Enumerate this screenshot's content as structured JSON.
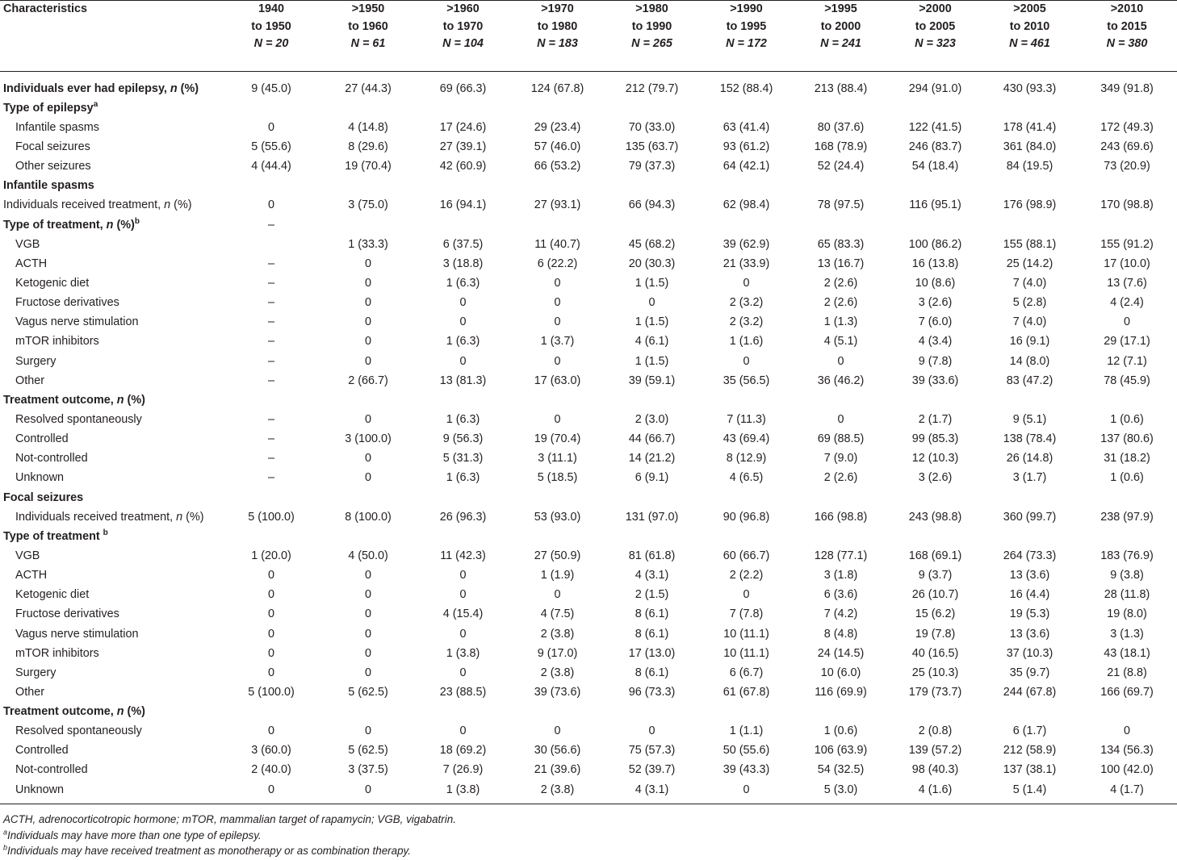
{
  "table": {
    "col0_header": "Characteristics",
    "columns": [
      {
        "range1": "1940",
        "range2": "to 1950",
        "n": "N = 20"
      },
      {
        "range1": ">1950",
        "range2": "to 1960",
        "n": "N = 61"
      },
      {
        "range1": ">1960",
        "range2": "to 1970",
        "n": "N = 104"
      },
      {
        "range1": ">1970",
        "range2": "to 1980",
        "n": "N = 183"
      },
      {
        "range1": ">1980",
        "range2": "to 1990",
        "n": "N = 265"
      },
      {
        "range1": ">1990",
        "range2": "to 1995",
        "n": "N = 172"
      },
      {
        "range1": ">1995",
        "range2": "to 2000",
        "n": "N = 241"
      },
      {
        "range1": ">2000",
        "range2": "to 2005",
        "n": "N = 323"
      },
      {
        "range1": ">2005",
        "range2": "to 2010",
        "n": "N = 461"
      },
      {
        "range1": ">2010",
        "range2": "to 2015",
        "n": "N = 380"
      }
    ],
    "rows": [
      {
        "kind": "bold",
        "label": "Individuals ever had epilepsy, n (%)",
        "values": [
          "9 (45.0)",
          "27 (44.3)",
          "69 (66.3)",
          "124 (67.8)",
          "212 (79.7)",
          "152 (88.4)",
          "213 (88.4)",
          "294 (91.0)",
          "430 (93.3)",
          "349 (91.8)"
        ]
      },
      {
        "kind": "section",
        "label": "Type of epilepsy",
        "sup": "a",
        "values": []
      },
      {
        "kind": "sub",
        "label": "Infantile spasms",
        "values": [
          "0",
          "4 (14.8)",
          "17 (24.6)",
          "29 (23.4)",
          "70 (33.0)",
          "63 (41.4)",
          "80 (37.6)",
          "122 (41.5)",
          "178 (41.4)",
          "172 (49.3)"
        ]
      },
      {
        "kind": "sub",
        "label": "Focal seizures",
        "values": [
          "5 (55.6)",
          "8 (29.6)",
          "27 (39.1)",
          "57 (46.0)",
          "135 (63.7)",
          "93 (61.2)",
          "168 (78.9)",
          "246 (83.7)",
          "361 (84.0)",
          "243 (69.6)"
        ]
      },
      {
        "kind": "sub",
        "label": "Other seizures",
        "values": [
          "4 (44.4)",
          "19 (70.4)",
          "42 (60.9)",
          "66 (53.2)",
          "79 (37.3)",
          "64 (42.1)",
          "52 (24.4)",
          "54 (18.4)",
          "84 (19.5)",
          "73 (20.9)"
        ]
      },
      {
        "kind": "section",
        "label": "Infantile spasms",
        "values": []
      },
      {
        "kind": "plain",
        "label": "Individuals received treatment, n (%)",
        "values": [
          "0",
          "3 (75.0)",
          "16 (94.1)",
          "27 (93.1)",
          "66 (94.3)",
          "62 (98.4)",
          "78 (97.5)",
          "116 (95.1)",
          "176 (98.9)",
          "170 (98.8)"
        ]
      },
      {
        "kind": "section",
        "label": "Type of treatment, n (%)",
        "sup": "b",
        "values": [
          "–"
        ]
      },
      {
        "kind": "sub",
        "label": "VGB",
        "values": [
          "",
          "1 (33.3)",
          "6 (37.5)",
          "11 (40.7)",
          "45 (68.2)",
          "39 (62.9)",
          "65 (83.3)",
          "100 (86.2)",
          "155 (88.1)",
          "155 (91.2)"
        ]
      },
      {
        "kind": "sub",
        "label": "ACTH",
        "values": [
          "–",
          "0",
          "3 (18.8)",
          "6 (22.2)",
          "20 (30.3)",
          "21 (33.9)",
          "13 (16.7)",
          "16 (13.8)",
          "25 (14.2)",
          "17 (10.0)"
        ]
      },
      {
        "kind": "sub",
        "label": "Ketogenic diet",
        "values": [
          "–",
          "0",
          "1 (6.3)",
          "0",
          "1 (1.5)",
          "0",
          "2 (2.6)",
          "10 (8.6)",
          "7 (4.0)",
          "13 (7.6)"
        ]
      },
      {
        "kind": "sub",
        "label": "Fructose derivatives",
        "values": [
          "–",
          "0",
          "0",
          "0",
          "0",
          "2 (3.2)",
          "2 (2.6)",
          "3 (2.6)",
          "5 (2.8)",
          "4 (2.4)"
        ]
      },
      {
        "kind": "sub",
        "label": "Vagus nerve stimulation",
        "values": [
          "–",
          "0",
          "0",
          "0",
          "1 (1.5)",
          "2 (3.2)",
          "1 (1.3)",
          "7 (6.0)",
          "7 (4.0)",
          "0"
        ]
      },
      {
        "kind": "sub",
        "label": "mTOR inhibitors",
        "values": [
          "–",
          "0",
          "1 (6.3)",
          "1 (3.7)",
          "4 (6.1)",
          "1 (1.6)",
          "4 (5.1)",
          "4 (3.4)",
          "16 (9.1)",
          "29 (17.1)"
        ]
      },
      {
        "kind": "sub",
        "label": "Surgery",
        "values": [
          "–",
          "0",
          "0",
          "0",
          "1 (1.5)",
          "0",
          "0",
          "9 (7.8)",
          "14 (8.0)",
          "12 (7.1)"
        ]
      },
      {
        "kind": "sub",
        "label": "Other",
        "values": [
          "–",
          "2 (66.7)",
          "13 (81.3)",
          "17 (63.0)",
          "39 (59.1)",
          "35 (56.5)",
          "36 (46.2)",
          "39 (33.6)",
          "83 (47.2)",
          "78 (45.9)"
        ]
      },
      {
        "kind": "section",
        "label": "Treatment outcome, n (%)",
        "values": []
      },
      {
        "kind": "sub",
        "label": "Resolved spontaneously",
        "values": [
          "–",
          "0",
          "1 (6.3)",
          "0",
          "2 (3.0)",
          "7 (11.3)",
          "0",
          "2 (1.7)",
          "9 (5.1)",
          "1 (0.6)"
        ]
      },
      {
        "kind": "sub",
        "label": "Controlled",
        "values": [
          "–",
          "3 (100.0)",
          "9 (56.3)",
          "19 (70.4)",
          "44 (66.7)",
          "43 (69.4)",
          "69 (88.5)",
          "99 (85.3)",
          "138 (78.4)",
          "137 (80.6)"
        ]
      },
      {
        "kind": "sub",
        "label": "Not-controlled",
        "values": [
          "–",
          "0",
          "5 (31.3)",
          "3 (11.1)",
          "14 (21.2)",
          "8 (12.9)",
          "7 (9.0)",
          "12 (10.3)",
          "26 (14.8)",
          "31 (18.2)"
        ]
      },
      {
        "kind": "sub",
        "label": "Unknown",
        "values": [
          "–",
          "0",
          "1 (6.3)",
          "5 (18.5)",
          "6 (9.1)",
          "4 (6.5)",
          "2 (2.6)",
          "3 (2.6)",
          "3 (1.7)",
          "1 (0.6)"
        ]
      },
      {
        "kind": "section",
        "label": "Focal seizures",
        "values": []
      },
      {
        "kind": "sub",
        "label": "Individuals received treatment, n (%)",
        "values": [
          "5 (100.0)",
          "8 (100.0)",
          "26 (96.3)",
          "53 (93.0)",
          "131 (97.0)",
          "90 (96.8)",
          "166 (98.8)",
          "243 (98.8)",
          "360 (99.7)",
          "238 (97.9)"
        ]
      },
      {
        "kind": "section",
        "label": "Type of treatment ",
        "sup": "b",
        "values": []
      },
      {
        "kind": "sub",
        "label": "VGB",
        "values": [
          "1 (20.0)",
          "4 (50.0)",
          "11 (42.3)",
          "27 (50.9)",
          "81 (61.8)",
          "60 (66.7)",
          "128 (77.1)",
          "168 (69.1)",
          "264 (73.3)",
          "183 (76.9)"
        ]
      },
      {
        "kind": "sub",
        "label": "ACTH",
        "values": [
          "0",
          "0",
          "0",
          "1 (1.9)",
          "4 (3.1)",
          "2 (2.2)",
          "3 (1.8)",
          "9 (3.7)",
          "13 (3.6)",
          "9 (3.8)"
        ]
      },
      {
        "kind": "sub",
        "label": "Ketogenic diet",
        "values": [
          "0",
          "0",
          "0",
          "0",
          "2 (1.5)",
          "0",
          "6 (3.6)",
          "26 (10.7)",
          "16 (4.4)",
          "28 (11.8)"
        ]
      },
      {
        "kind": "sub",
        "label": "Fructose derivatives",
        "values": [
          "0",
          "0",
          "4 (15.4)",
          "4 (7.5)",
          "8 (6.1)",
          "7 (7.8)",
          "7 (4.2)",
          "15 (6.2)",
          "19 (5.3)",
          "19 (8.0)"
        ]
      },
      {
        "kind": "sub",
        "label": "Vagus nerve stimulation",
        "values": [
          "0",
          "0",
          "0",
          "2 (3.8)",
          "8 (6.1)",
          "10 (11.1)",
          "8 (4.8)",
          "19 (7.8)",
          "13 (3.6)",
          "3 (1.3)"
        ]
      },
      {
        "kind": "sub",
        "label": "mTOR inhibitors",
        "values": [
          "0",
          "0",
          "1 (3.8)",
          "9 (17.0)",
          "17 (13.0)",
          "10 (11.1)",
          "24 (14.5)",
          "40 (16.5)",
          "37 (10.3)",
          "43 (18.1)"
        ]
      },
      {
        "kind": "sub",
        "label": "Surgery",
        "values": [
          "0",
          "0",
          "0",
          "2 (3.8)",
          "8 (6.1)",
          "6 (6.7)",
          "10 (6.0)",
          "25 (10.3)",
          "35 (9.7)",
          "21 (8.8)"
        ]
      },
      {
        "kind": "sub",
        "label": "Other",
        "values": [
          "5 (100.0)",
          "5 (62.5)",
          "23 (88.5)",
          "39 (73.6)",
          "96 (73.3)",
          "61 (67.8)",
          "116 (69.9)",
          "179 (73.7)",
          "244 (67.8)",
          "166 (69.7)"
        ]
      },
      {
        "kind": "section",
        "label": "Treatment outcome, n (%)",
        "values": []
      },
      {
        "kind": "sub",
        "label": "Resolved spontaneously",
        "values": [
          "0",
          "0",
          "0",
          "0",
          "0",
          "1 (1.1)",
          "1 (0.6)",
          "2 (0.8)",
          "6 (1.7)",
          "0"
        ]
      },
      {
        "kind": "sub",
        "label": "Controlled",
        "values": [
          "3 (60.0)",
          "5 (62.5)",
          "18 (69.2)",
          "30 (56.6)",
          "75 (57.3)",
          "50 (55.6)",
          "106 (63.9)",
          "139 (57.2)",
          "212 (58.9)",
          "134 (56.3)"
        ]
      },
      {
        "kind": "sub",
        "label": "Not-controlled",
        "values": [
          "2 (40.0)",
          "3 (37.5)",
          "7 (26.9)",
          "21 (39.6)",
          "52 (39.7)",
          "39 (43.3)",
          "54 (32.5)",
          "98 (40.3)",
          "137 (38.1)",
          "100 (42.0)"
        ]
      },
      {
        "kind": "sub",
        "label": "Unknown",
        "values": [
          "0",
          "0",
          "1 (3.8)",
          "2 (3.8)",
          "4 (3.1)",
          "0",
          "5 (3.0)",
          "4 (1.6)",
          "5 (1.4)",
          "4 (1.7)"
        ]
      }
    ]
  },
  "footnotes": {
    "abbrev": "ACTH, adrenocorticotropic hormone; mTOR, mammalian target of rapamycin; VGB, vigabatrin.",
    "a_mark": "a",
    "a_text": "Individuals may have more than one type of epilepsy.",
    "b_mark": "b",
    "b_text": "Individuals may have received treatment as monotherapy or as combination therapy."
  }
}
